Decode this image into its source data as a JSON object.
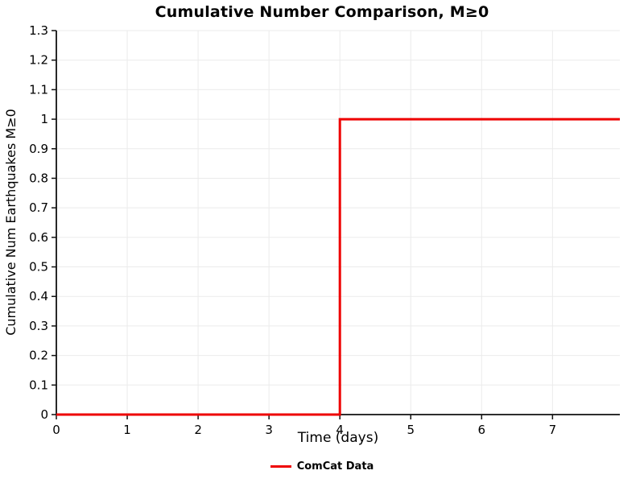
{
  "chart_data": {
    "type": "line",
    "title": "Cumulative Number Comparison, M≥0",
    "xlabel": "Time (days)",
    "ylabel": "Cumulative Num Earthquakes M≥0",
    "xlim": [
      0,
      7.95
    ],
    "ylim": [
      0,
      1.3
    ],
    "x_ticks": [
      0,
      1,
      2,
      3,
      4,
      5,
      6,
      7
    ],
    "y_ticks": [
      0,
      0.1,
      0.2,
      0.3,
      0.4,
      0.5,
      0.6,
      0.7,
      0.8,
      0.9,
      1,
      1.1,
      1.2,
      1.3
    ],
    "grid": true,
    "legend_position": "bottom",
    "series": [
      {
        "name": "ComCat Data",
        "color": "#ee0000",
        "step": true,
        "x": [
          0,
          4,
          4,
          7.95
        ],
        "y": [
          0,
          0,
          1,
          1
        ]
      }
    ]
  },
  "style": {
    "grid_color": "#ebebeb",
    "axis_color": "#111111",
    "tick_label_color": "#000000"
  }
}
